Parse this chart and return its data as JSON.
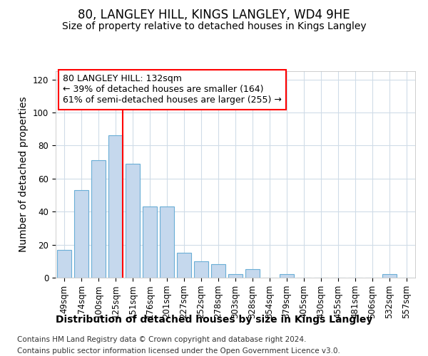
{
  "title": "80, LANGLEY HILL, KINGS LANGLEY, WD4 9HE",
  "subtitle": "Size of property relative to detached houses in Kings Langley",
  "xlabel": "Distribution of detached houses by size in Kings Langley",
  "ylabel": "Number of detached properties",
  "bar_labels": [
    "49sqm",
    "74sqm",
    "100sqm",
    "125sqm",
    "151sqm",
    "176sqm",
    "201sqm",
    "227sqm",
    "252sqm",
    "278sqm",
    "303sqm",
    "328sqm",
    "354sqm",
    "379sqm",
    "405sqm",
    "430sqm",
    "455sqm",
    "481sqm",
    "506sqm",
    "532sqm",
    "557sqm"
  ],
  "bar_values": [
    17,
    53,
    71,
    86,
    69,
    43,
    43,
    15,
    10,
    8,
    2,
    5,
    0,
    2,
    0,
    0,
    0,
    0,
    0,
    2,
    0
  ],
  "bar_color": "#c5d8ed",
  "bar_edge_color": "#6aaed6",
  "ylim": [
    0,
    125
  ],
  "yticks": [
    0,
    20,
    40,
    60,
    80,
    100,
    120
  ],
  "property_label": "80 LANGLEY HILL: 132sqm",
  "annotation_line1": "← 39% of detached houses are smaller (164)",
  "annotation_line2": "61% of semi-detached houses are larger (255) →",
  "vline_bar_index": 3,
  "footer_line1": "Contains HM Land Registry data © Crown copyright and database right 2024.",
  "footer_line2": "Contains public sector information licensed under the Open Government Licence v3.0.",
  "background_color": "#ffffff",
  "plot_bg_color": "#ffffff",
  "grid_color": "#d0dce8",
  "title_fontsize": 12,
  "subtitle_fontsize": 10,
  "axis_label_fontsize": 10,
  "tick_fontsize": 8.5,
  "annotation_fontsize": 9,
  "footer_fontsize": 7.5
}
